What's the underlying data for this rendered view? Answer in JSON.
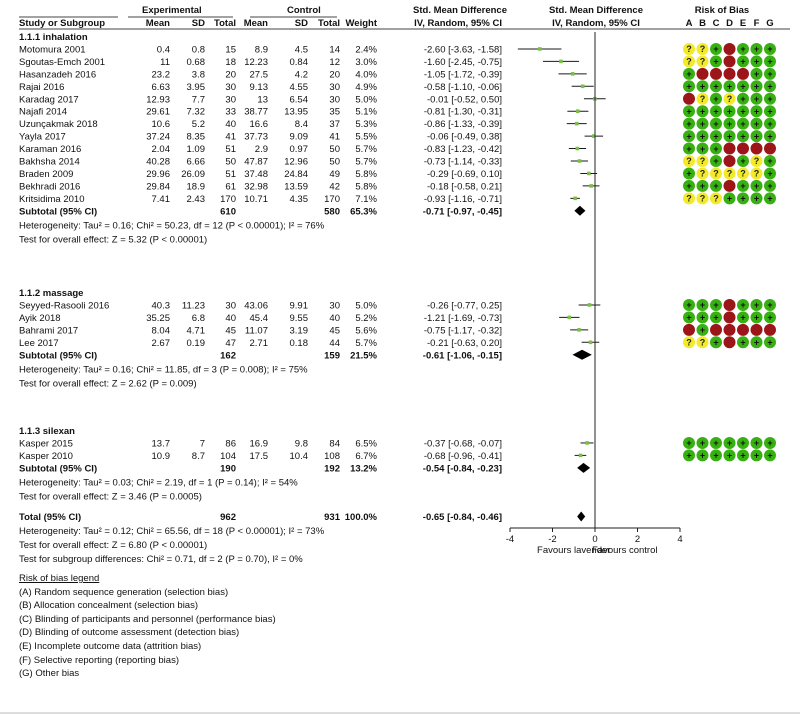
{
  "header": {
    "col_study": "Study or Subgroup",
    "group1": "Experimental",
    "group2": "Control",
    "mean": "Mean",
    "sd": "SD",
    "total": "Total",
    "weight": "Weight",
    "smd_title": "Std. Mean Difference",
    "smd_sub": "IV, Random, 95% CI",
    "plot_title": "Std. Mean Difference",
    "plot_sub": "IV, Random, 95% CI",
    "rob_title": "Risk of Bias",
    "rob_letters": [
      "A",
      "B",
      "C",
      "D",
      "E",
      "F",
      "G"
    ]
  },
  "chart_data": {
    "type": "forest",
    "xlim": [
      -4,
      4
    ],
    "ticks": [
      "-4",
      "-2",
      "0",
      "2",
      "4"
    ],
    "xlabel_left": "Favours lavender",
    "xlabel_right": "Favours control",
    "groups": [
      {
        "title": "1.1.1 inhalation",
        "studies": [
          {
            "name": "Motomura 2001",
            "m1": "0.4",
            "sd1": "0.8",
            "n1": "15",
            "m2": "8.9",
            "sd2": "4.5",
            "n2": "14",
            "w": "2.4%",
            "ci": "-2.60 [-3.63, -1.58]",
            "est": -2.6,
            "lo": -3.63,
            "hi": -1.58,
            "rob": "??+-+++"
          },
          {
            "name": "Sgoutas-Emch 2001",
            "m1": "11",
            "sd1": "0.68",
            "n1": "18",
            "m2": "12.23",
            "sd2": "0.84",
            "n2": "12",
            "w": "3.0%",
            "ci": "-1.60 [-2.45, -0.75]",
            "est": -1.6,
            "lo": -2.45,
            "hi": -0.75,
            "rob": "??+-+++"
          },
          {
            "name": "Hasanzadeh 2016",
            "m1": "23.2",
            "sd1": "3.8",
            "n1": "20",
            "m2": "27.5",
            "sd2": "4.2",
            "n2": "20",
            "w": "4.0%",
            "ci": "-1.05 [-1.72, -0.39]",
            "est": -1.05,
            "lo": -1.72,
            "hi": -0.39,
            "rob": "+----++"
          },
          {
            "name": "Rajai 2016",
            "m1": "6.63",
            "sd1": "3.95",
            "n1": "30",
            "m2": "9.13",
            "sd2": "4.55",
            "n2": "30",
            "w": "4.9%",
            "ci": "-0.58 [-1.10, -0.06]",
            "est": -0.58,
            "lo": -1.1,
            "hi": -0.06,
            "rob": "+++++++"
          },
          {
            "name": "Karadag 2017",
            "m1": "12.93",
            "sd1": "7.7",
            "n1": "30",
            "m2": "13",
            "sd2": "6.54",
            "n2": "30",
            "w": "5.0%",
            "ci": "-0.01 [-0.52, 0.50]",
            "est": -0.01,
            "lo": -0.52,
            "hi": 0.5,
            "rob": "-?+?+++"
          },
          {
            "name": "Najafi 2014",
            "m1": "29.61",
            "sd1": "7.32",
            "n1": "33",
            "m2": "38.77",
            "sd2": "13.95",
            "n2": "35",
            "w": "5.1%",
            "ci": "-0.81 [-1.30, -0.31]",
            "est": -0.81,
            "lo": -1.3,
            "hi": -0.31,
            "rob": "+++++++"
          },
          {
            "name": "Uzunçakmak 2018",
            "m1": "10.6",
            "sd1": "5.2",
            "n1": "40",
            "m2": "16.6",
            "sd2": "8.4",
            "n2": "37",
            "w": "5.3%",
            "ci": "-0.86 [-1.33, -0.39]",
            "est": -0.86,
            "lo": -1.33,
            "hi": -0.39,
            "rob": "+++++++"
          },
          {
            "name": "Yayla 2017",
            "m1": "37.24",
            "sd1": "8.35",
            "n1": "41",
            "m2": "37.73",
            "sd2": "9.09",
            "n2": "41",
            "w": "5.5%",
            "ci": "-0.06 [-0.49, 0.38]",
            "est": -0.06,
            "lo": -0.49,
            "hi": 0.38,
            "rob": "+++++++"
          },
          {
            "name": "Karaman 2016",
            "m1": "2.04",
            "sd1": "1.09",
            "n1": "51",
            "m2": "2.9",
            "sd2": "0.97",
            "n2": "50",
            "w": "5.7%",
            "ci": "-0.83 [-1.23, -0.42]",
            "est": -0.83,
            "lo": -1.23,
            "hi": -0.42,
            "rob": "+++----"
          },
          {
            "name": "Bakhsha 2014",
            "m1": "40.28",
            "sd1": "6.66",
            "n1": "50",
            "m2": "47.87",
            "sd2": "12.96",
            "n2": "50",
            "w": "5.7%",
            "ci": "-0.73 [-1.14, -0.33]",
            "est": -0.73,
            "lo": -1.14,
            "hi": -0.33,
            "rob": "??+-+?+"
          },
          {
            "name": "Braden 2009",
            "m1": "29.96",
            "sd1": "26.09",
            "n1": "51",
            "m2": "37.48",
            "sd2": "24.84",
            "n2": "49",
            "w": "5.8%",
            "ci": "-0.29 [-0.69, 0.10]",
            "est": -0.29,
            "lo": -0.69,
            "hi": 0.1,
            "rob": "+?????+"
          },
          {
            "name": "Bekhradi 2016",
            "m1": "29.84",
            "sd1": "18.9",
            "n1": "61",
            "m2": "32.98",
            "sd2": "13.59",
            "n2": "42",
            "w": "5.8%",
            "ci": "-0.18 [-0.58, 0.21]",
            "est": -0.18,
            "lo": -0.58,
            "hi": 0.21,
            "rob": "+++-+++"
          },
          {
            "name": "Kritsidima 2010",
            "m1": "7.41",
            "sd1": "2.43",
            "n1": "170",
            "m2": "10.71",
            "sd2": "4.35",
            "n2": "170",
            "w": "7.1%",
            "ci": "-0.93 [-1.16, -0.71]",
            "est": -0.93,
            "lo": -1.16,
            "hi": -0.71,
            "rob": "???++++"
          }
        ],
        "subtotal": {
          "label": "Subtotal (95% CI)",
          "n1": "610",
          "n2": "580",
          "w": "65.3%",
          "ci": "-0.71 [-0.97, -0.45]",
          "est": -0.71,
          "lo": -0.97,
          "hi": -0.45
        },
        "heterogeneity": "Heterogeneity: Tau² = 0.16; Chi² = 50.23, df = 12 (P < 0.00001); I² = 76%",
        "overall": "Test for overall effect: Z = 5.32 (P < 0.00001)"
      },
      {
        "title": "1.1.2 massage",
        "studies": [
          {
            "name": "Seyyed-Rasooli 2016",
            "m1": "40.3",
            "sd1": "11.23",
            "n1": "30",
            "m2": "43.06",
            "sd2": "9.91",
            "n2": "30",
            "w": "5.0%",
            "ci": "-0.26 [-0.77, 0.25]",
            "est": -0.26,
            "lo": -0.77,
            "hi": 0.25,
            "rob": "+++-+++"
          },
          {
            "name": "Ayik 2018",
            "m1": "35.25",
            "sd1": "6.8",
            "n1": "40",
            "m2": "45.4",
            "sd2": "9.55",
            "n2": "40",
            "w": "5.2%",
            "ci": "-1.21 [-1.69, -0.73]",
            "est": -1.21,
            "lo": -1.69,
            "hi": -0.73,
            "rob": "+++-+++"
          },
          {
            "name": "Bahrami 2017",
            "m1": "8.04",
            "sd1": "4.71",
            "n1": "45",
            "m2": "11.07",
            "sd2": "3.19",
            "n2": "45",
            "w": "5.6%",
            "ci": "-0.75 [-1.17, -0.32]",
            "est": -0.75,
            "lo": -1.17,
            "hi": -0.32,
            "rob": "-+-----"
          },
          {
            "name": "Lee 2017",
            "m1": "2.67",
            "sd1": "0.19",
            "n1": "47",
            "m2": "2.71",
            "sd2": "0.18",
            "n2": "44",
            "w": "5.7%",
            "ci": "-0.21 [-0.63, 0.20]",
            "est": -0.21,
            "lo": -0.63,
            "hi": 0.2,
            "rob": "??+-+++"
          }
        ],
        "subtotal": {
          "label": "Subtotal (95% CI)",
          "n1": "162",
          "n2": "159",
          "w": "21.5%",
          "ci": "-0.61 [-1.06, -0.15]",
          "est": -0.61,
          "lo": -1.06,
          "hi": -0.15
        },
        "heterogeneity": "Heterogeneity: Tau² = 0.16; Chi² = 11.85, df = 3 (P = 0.008); I² = 75%",
        "overall": "Test for overall effect: Z = 2.62 (P = 0.009)"
      },
      {
        "title": "1.1.3 silexan",
        "studies": [
          {
            "name": "Kasper 2015",
            "m1": "13.7",
            "sd1": "7",
            "n1": "86",
            "m2": "16.9",
            "sd2": "9.8",
            "n2": "84",
            "w": "6.5%",
            "ci": "-0.37 [-0.68, -0.07]",
            "est": -0.37,
            "lo": -0.68,
            "hi": -0.07,
            "rob": "+++++++"
          },
          {
            "name": "Kasper 2010",
            "m1": "10.9",
            "sd1": "8.7",
            "n1": "104",
            "m2": "17.5",
            "sd2": "10.4",
            "n2": "108",
            "w": "6.7%",
            "ci": "-0.68 [-0.96, -0.41]",
            "est": -0.68,
            "lo": -0.96,
            "hi": -0.41,
            "rob": "+++++++"
          }
        ],
        "subtotal": {
          "label": "Subtotal (95% CI)",
          "n1": "190",
          "n2": "192",
          "w": "13.2%",
          "ci": "-0.54 [-0.84, -0.23]",
          "est": -0.54,
          "lo": -0.84,
          "hi": -0.23
        },
        "heterogeneity": "Heterogeneity: Tau² = 0.03; Chi² = 2.19, df = 1 (P = 0.14); I² = 54%",
        "overall": "Test for overall effect: Z = 3.46 (P = 0.0005)"
      }
    ],
    "total": {
      "label": "Total (95% CI)",
      "n1": "962",
      "n2": "931",
      "w": "100.0%",
      "ci": "-0.65 [-0.84, -0.46]",
      "est": -0.65,
      "lo": -0.84,
      "hi": -0.46
    },
    "total_heterogeneity": "Heterogeneity: Tau² = 0.12; Chi² = 65.56, df = 18 (P < 0.00001); I² = 73%",
    "total_overall": "Test for overall effect: Z = 6.80 (P < 0.00001)",
    "subgroup_diff": "Test for subgroup differences: Chi² = 0.71, df = 2 (P = 0.70), I² = 0%",
    "colors": {
      "low": "#37b012",
      "unclear": "#f2ea2a",
      "high": "#9c1518",
      "study_square": "#7bbf4a",
      "ci_line": "#1a1a1a"
    }
  },
  "legend": {
    "title": "Risk of bias legend",
    "items": [
      "(A) Random sequence generation (selection bias)",
      "(B) Allocation concealment (selection bias)",
      "(C) Blinding of participants and personnel (performance bias)",
      "(D) Blinding of outcome assessment (detection bias)",
      "(E) Incomplete outcome data (attrition bias)",
      "(F) Selective reporting (reporting bias)",
      "(G) Other bias"
    ]
  }
}
